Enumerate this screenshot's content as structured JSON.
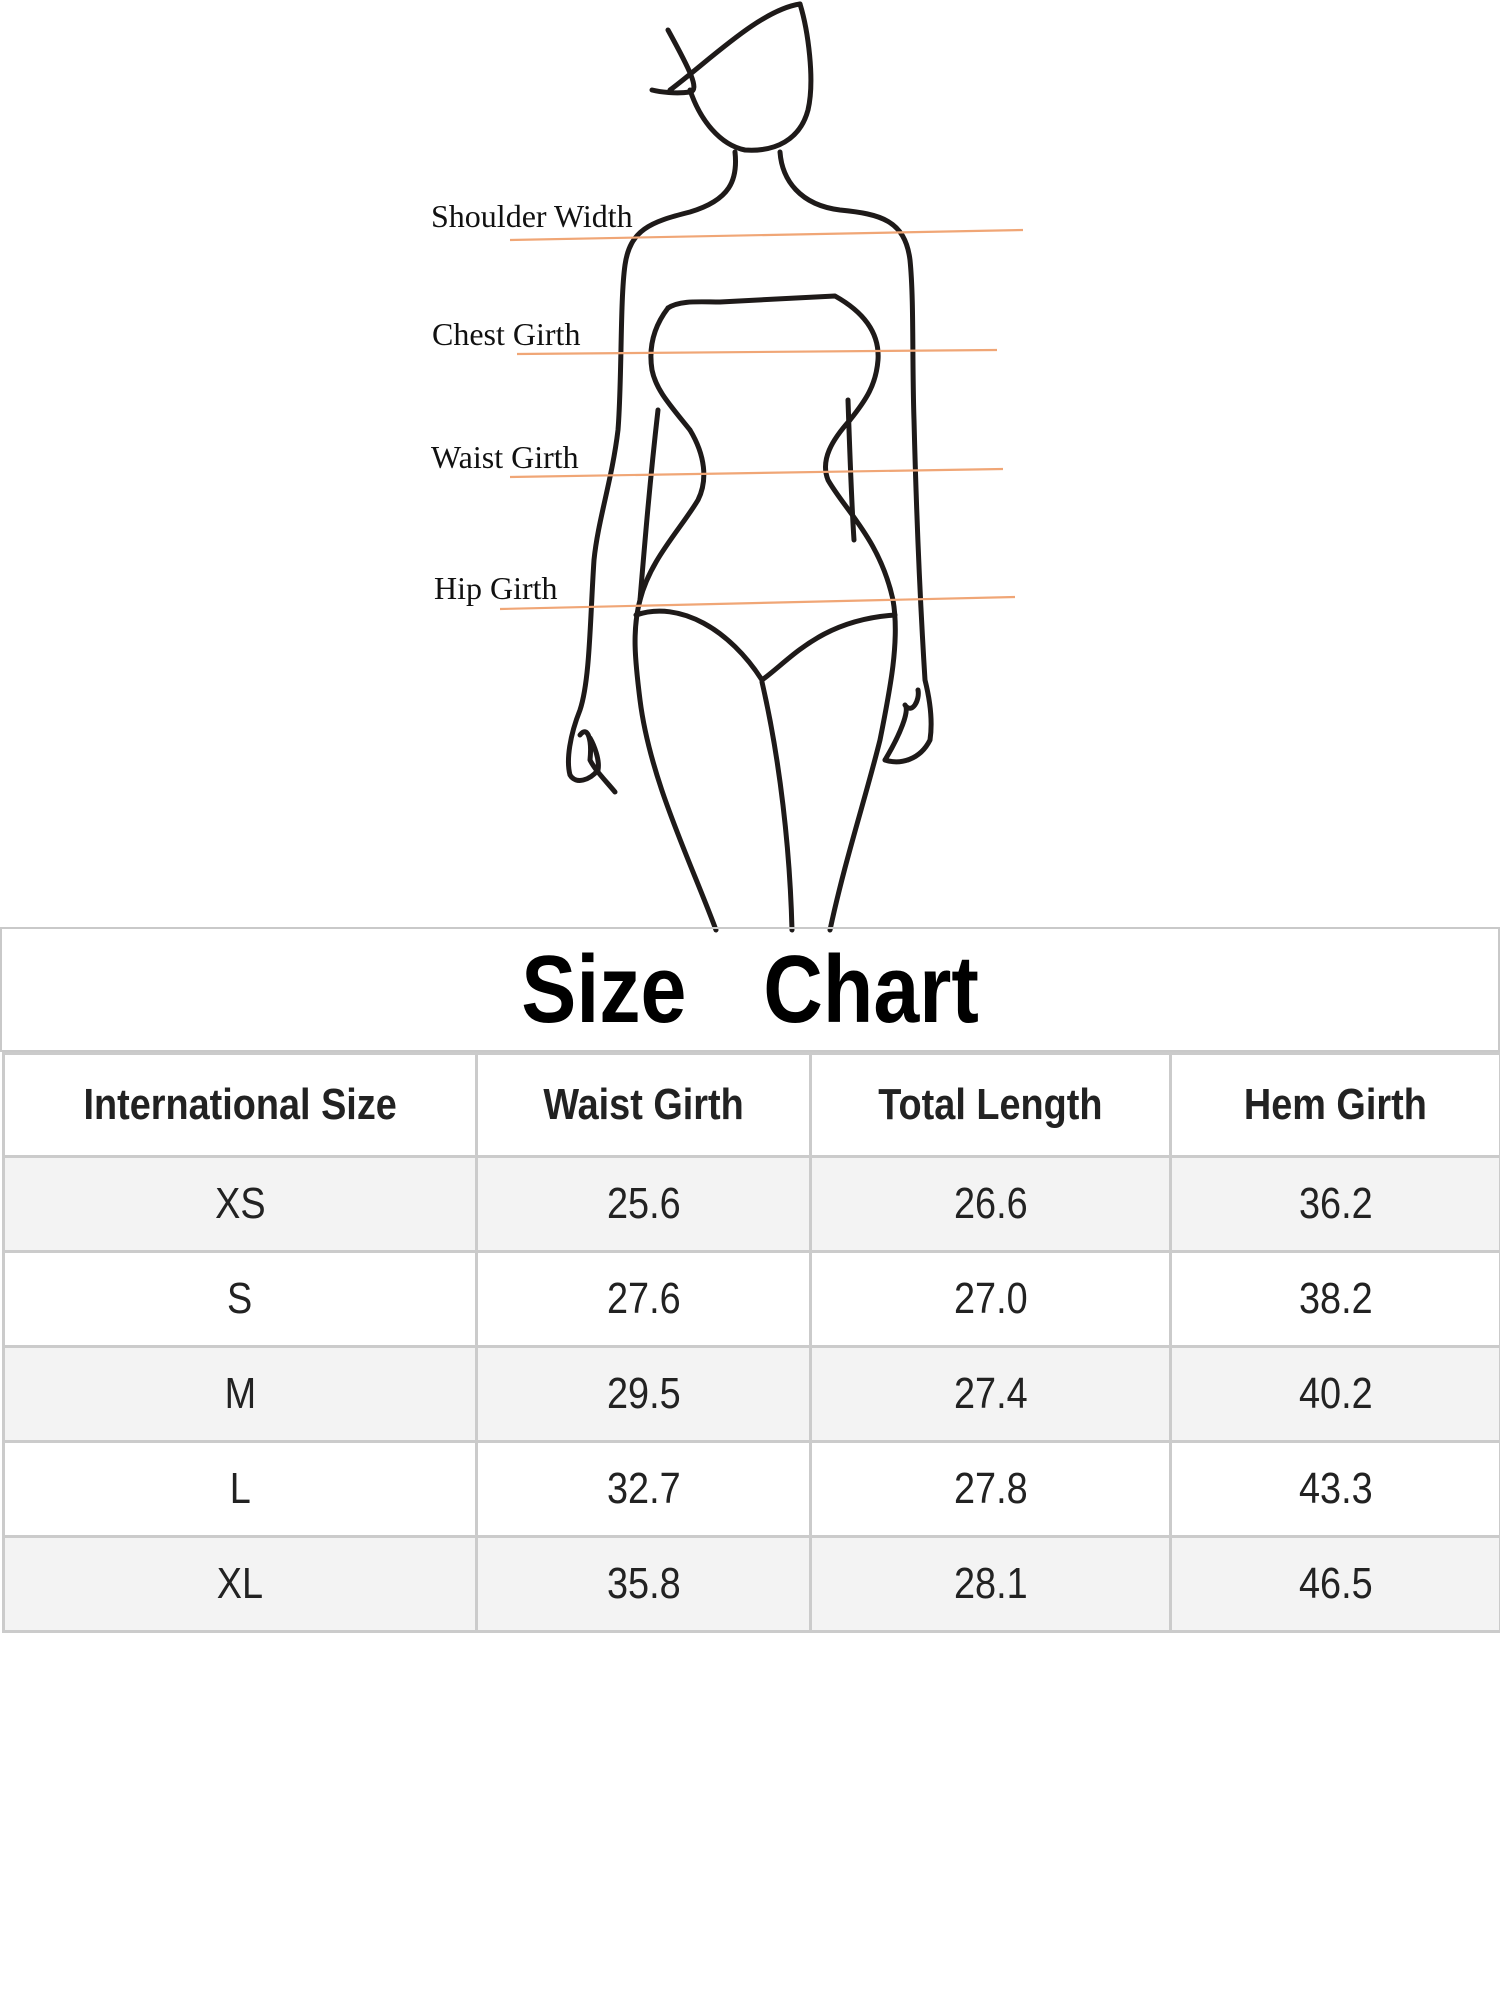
{
  "measurement_labels": {
    "shoulder_width": "Shoulder Width",
    "chest_girth": "Chest Girth",
    "waist_girth": "Waist Girth",
    "hip_girth": "Hip Girth"
  },
  "colors": {
    "measure_line": "#f0a676",
    "border": "#cbcbcb",
    "row_shade": "#f3f3f3"
  },
  "title": "Size  Chart",
  "table": {
    "headers": [
      "International Size",
      "Waist Girth",
      "Total Length",
      "Hem Girth"
    ],
    "rows": [
      [
        "XS",
        "25.6",
        "26.6",
        "36.2"
      ],
      [
        "S",
        "27.6",
        "27.0",
        "38.2"
      ],
      [
        "M",
        "29.5",
        "27.4",
        "40.2"
      ],
      [
        "L",
        "32.7",
        "27.8",
        "43.3"
      ],
      [
        "XL",
        "35.8",
        "28.1",
        "46.5"
      ]
    ]
  }
}
